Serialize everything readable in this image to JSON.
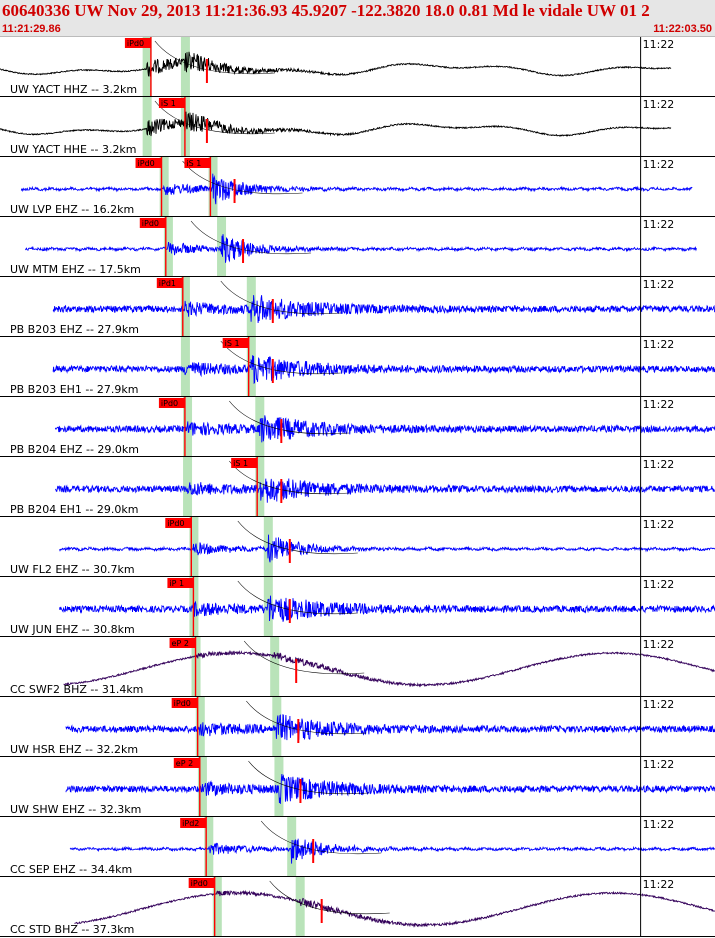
{
  "header": {
    "title": "60640336 UW Nov 29, 2013 11:21:36.93    45.9207 -122.3820 18.0 0.81 Md le vidale UW 01    2",
    "start_time": "11:21:29.86",
    "end_time": "11:22:03.50"
  },
  "colors": {
    "trace_black": "#000000",
    "trace_blue": "#0000ff",
    "trace_purple": "#33005a",
    "pick_box": "#ff0000",
    "pick_window": "#b9e3b9",
    "header_text": "#d00000"
  },
  "chart_data": {
    "type": "line",
    "title": "60640336 UW Nov 29, 2013 11:21:36.93    45.9207 -122.3820 18.0 0.81 Md le vidale UW 01    2",
    "x_start": "11:21:29.86",
    "x_end": "11:22:03.50",
    "xlim": [
      0,
      33.64
    ],
    "tick_label": "11:22",
    "tick_time": 30.14,
    "grid": false,
    "series": [
      {
        "name": "UW YACT HHZ -- 3.2km",
        "color": "black",
        "style": "lowfreq",
        "start": 0,
        "end": 31.6,
        "p_time": 6.9,
        "s_time": 8.7,
        "picks": [
          {
            "label": "iPd0",
            "t": 7.1
          }
        ]
      },
      {
        "name": "UW YACT HHE -- 3.2km",
        "color": "black",
        "style": "lowfreq",
        "start": 0,
        "end": 31.6,
        "p_time": 6.9,
        "s_time": 8.7,
        "picks": [
          {
            "label": "iS 1",
            "t": 8.7
          }
        ]
      },
      {
        "name": "UW LVP EHZ -- 16.2km",
        "color": "blue",
        "style": "flat",
        "start": 1,
        "end": 32.6,
        "p_time": 7.7,
        "s_time": 10.0,
        "picks": [
          {
            "label": "iPd0",
            "t": 7.6
          },
          {
            "label": "iS 1",
            "t": 9.9
          }
        ]
      },
      {
        "name": "UW MTM EHZ -- 17.5km",
        "color": "blue",
        "style": "flat",
        "start": 1.2,
        "end": 32.8,
        "p_time": 7.9,
        "s_time": 10.4,
        "picks": [
          {
            "label": "iPd0",
            "t": 7.8
          }
        ]
      },
      {
        "name": "PB B203 EHZ -- 27.9km",
        "color": "blue",
        "style": "noisy",
        "start": 2.5,
        "end": 34.0,
        "p_time": 8.7,
        "s_time": 11.8,
        "picks": [
          {
            "label": "iPd1",
            "t": 8.6
          }
        ]
      },
      {
        "name": "PB B203 EH1 -- 27.9km",
        "color": "blue",
        "style": "noisy",
        "start": 2.5,
        "end": 34.0,
        "p_time": 8.7,
        "s_time": 11.8,
        "picks": [
          {
            "label": "iS 1",
            "t": 11.7
          }
        ]
      },
      {
        "name": "PB B204 EHZ -- 29.0km",
        "color": "blue",
        "style": "noisy",
        "start": 2.6,
        "end": 34.0,
        "p_time": 8.8,
        "s_time": 12.2,
        "picks": [
          {
            "label": "iPd0",
            "t": 8.7
          }
        ]
      },
      {
        "name": "PB B204 EH1 -- 29.0km",
        "color": "blue",
        "style": "noisy",
        "start": 2.6,
        "end": 34.0,
        "p_time": 8.8,
        "s_time": 12.2,
        "picks": [
          {
            "label": "iS 1",
            "t": 12.1
          }
        ]
      },
      {
        "name": "UW FL2 EHZ -- 30.7km",
        "color": "blue",
        "style": "flat",
        "start": 2.8,
        "end": 34.0,
        "p_time": 9.1,
        "s_time": 12.6,
        "picks": [
          {
            "label": "iPd0",
            "t": 9.0
          }
        ]
      },
      {
        "name": "UW JUN EHZ -- 30.8km",
        "color": "blue",
        "style": "noisy",
        "start": 2.8,
        "end": 34.0,
        "p_time": 9.1,
        "s_time": 12.6,
        "picks": [
          {
            "label": "iP 1",
            "t": 9.1
          }
        ]
      },
      {
        "name": "CC SWF2 BHZ -- 31.4km",
        "color": "purple",
        "style": "wave",
        "start": 3.0,
        "end": 34.0,
        "p_time": 9.2,
        "s_time": 12.9,
        "picks": [
          {
            "label": "eP 2",
            "t": 9.2
          }
        ]
      },
      {
        "name": "UW HSR EHZ -- 32.2km",
        "color": "blue",
        "style": "noisy",
        "start": 3.1,
        "end": 34.0,
        "p_time": 9.4,
        "s_time": 13.0,
        "picks": [
          {
            "label": "iPd0",
            "t": 9.3
          }
        ]
      },
      {
        "name": "UW SHW EHZ -- 32.3km",
        "color": "blue",
        "style": "noisy",
        "start": 3.1,
        "end": 34.0,
        "p_time": 9.5,
        "s_time": 13.1,
        "picks": [
          {
            "label": "eP 2",
            "t": 9.4
          }
        ]
      },
      {
        "name": "CC SEP EHZ -- 34.4km",
        "color": "blue",
        "style": "flat",
        "start": 3.3,
        "end": 34.0,
        "p_time": 9.8,
        "s_time": 13.7,
        "picks": [
          {
            "label": "iPd2",
            "t": 9.7
          }
        ]
      },
      {
        "name": "CC STD BHZ -- 37.3km",
        "color": "purple",
        "style": "wave",
        "start": 3.5,
        "end": 34.0,
        "p_time": 10.2,
        "s_time": 14.1,
        "picks": [
          {
            "label": "iPd0",
            "t": 10.1
          }
        ]
      }
    ]
  }
}
